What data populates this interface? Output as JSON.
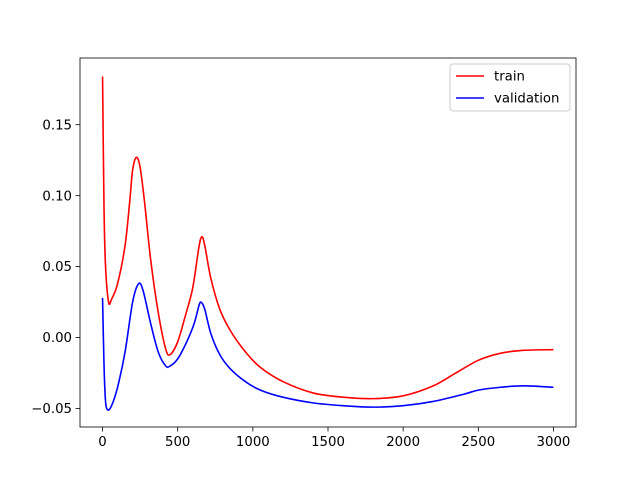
{
  "chart_data": {
    "type": "line",
    "title": "",
    "xlabel": "",
    "ylabel": "",
    "xlim": [
      -150,
      3150
    ],
    "ylim": [
      -0.063,
      0.197
    ],
    "xticks": [
      0,
      500,
      1000,
      1500,
      2000,
      2500,
      3000
    ],
    "xtick_labels": [
      "0",
      "500",
      "1000",
      "1500",
      "2000",
      "2500",
      "3000"
    ],
    "yticks": [
      -0.05,
      0.0,
      0.05,
      0.1,
      0.15
    ],
    "ytick_labels": [
      "−0.05",
      "0.00",
      "0.05",
      "0.10",
      "0.15"
    ],
    "grid": false,
    "legend_position": "top-right",
    "series": [
      {
        "name": "train",
        "color": "#ff0000",
        "points": [
          [
            0,
            0.184
          ],
          [
            10,
            0.09
          ],
          [
            20,
            0.05
          ],
          [
            40,
            0.025
          ],
          [
            60,
            0.027
          ],
          [
            100,
            0.038
          ],
          [
            150,
            0.065
          ],
          [
            180,
            0.095
          ],
          [
            200,
            0.118
          ],
          [
            225,
            0.127
          ],
          [
            250,
            0.12
          ],
          [
            280,
            0.095
          ],
          [
            320,
            0.055
          ],
          [
            370,
            0.018
          ],
          [
            420,
            -0.008
          ],
          [
            450,
            -0.012
          ],
          [
            500,
            -0.003
          ],
          [
            550,
            0.015
          ],
          [
            600,
            0.035
          ],
          [
            640,
            0.063
          ],
          [
            660,
            0.071
          ],
          [
            680,
            0.065
          ],
          [
            720,
            0.042
          ],
          [
            780,
            0.02
          ],
          [
            850,
            0.005
          ],
          [
            950,
            -0.01
          ],
          [
            1050,
            -0.021
          ],
          [
            1200,
            -0.031
          ],
          [
            1400,
            -0.039
          ],
          [
            1600,
            -0.042
          ],
          [
            1800,
            -0.043
          ],
          [
            2000,
            -0.041
          ],
          [
            2200,
            -0.034
          ],
          [
            2350,
            -0.025
          ],
          [
            2500,
            -0.016
          ],
          [
            2650,
            -0.011
          ],
          [
            2800,
            -0.009
          ],
          [
            3000,
            -0.0085
          ]
        ]
      },
      {
        "name": "validation",
        "color": "#0000ff",
        "points": [
          [
            0,
            0.028
          ],
          [
            10,
            -0.02
          ],
          [
            20,
            -0.045
          ],
          [
            35,
            -0.051
          ],
          [
            60,
            -0.048
          ],
          [
            100,
            -0.035
          ],
          [
            150,
            -0.01
          ],
          [
            200,
            0.025
          ],
          [
            240,
            0.038
          ],
          [
            270,
            0.033
          ],
          [
            320,
            0.01
          ],
          [
            370,
            -0.01
          ],
          [
            420,
            -0.02
          ],
          [
            450,
            -0.02
          ],
          [
            500,
            -0.015
          ],
          [
            560,
            -0.003
          ],
          [
            610,
            0.01
          ],
          [
            640,
            0.022
          ],
          [
            655,
            0.025
          ],
          [
            680,
            0.02
          ],
          [
            720,
            0.003
          ],
          [
            780,
            -0.012
          ],
          [
            850,
            -0.022
          ],
          [
            950,
            -0.031
          ],
          [
            1050,
            -0.037
          ],
          [
            1200,
            -0.042
          ],
          [
            1400,
            -0.046
          ],
          [
            1600,
            -0.048
          ],
          [
            1800,
            -0.049
          ],
          [
            2000,
            -0.048
          ],
          [
            2200,
            -0.045
          ],
          [
            2400,
            -0.04
          ],
          [
            2500,
            -0.037
          ],
          [
            2650,
            -0.035
          ],
          [
            2800,
            -0.034
          ],
          [
            3000,
            -0.035
          ]
        ]
      }
    ]
  }
}
